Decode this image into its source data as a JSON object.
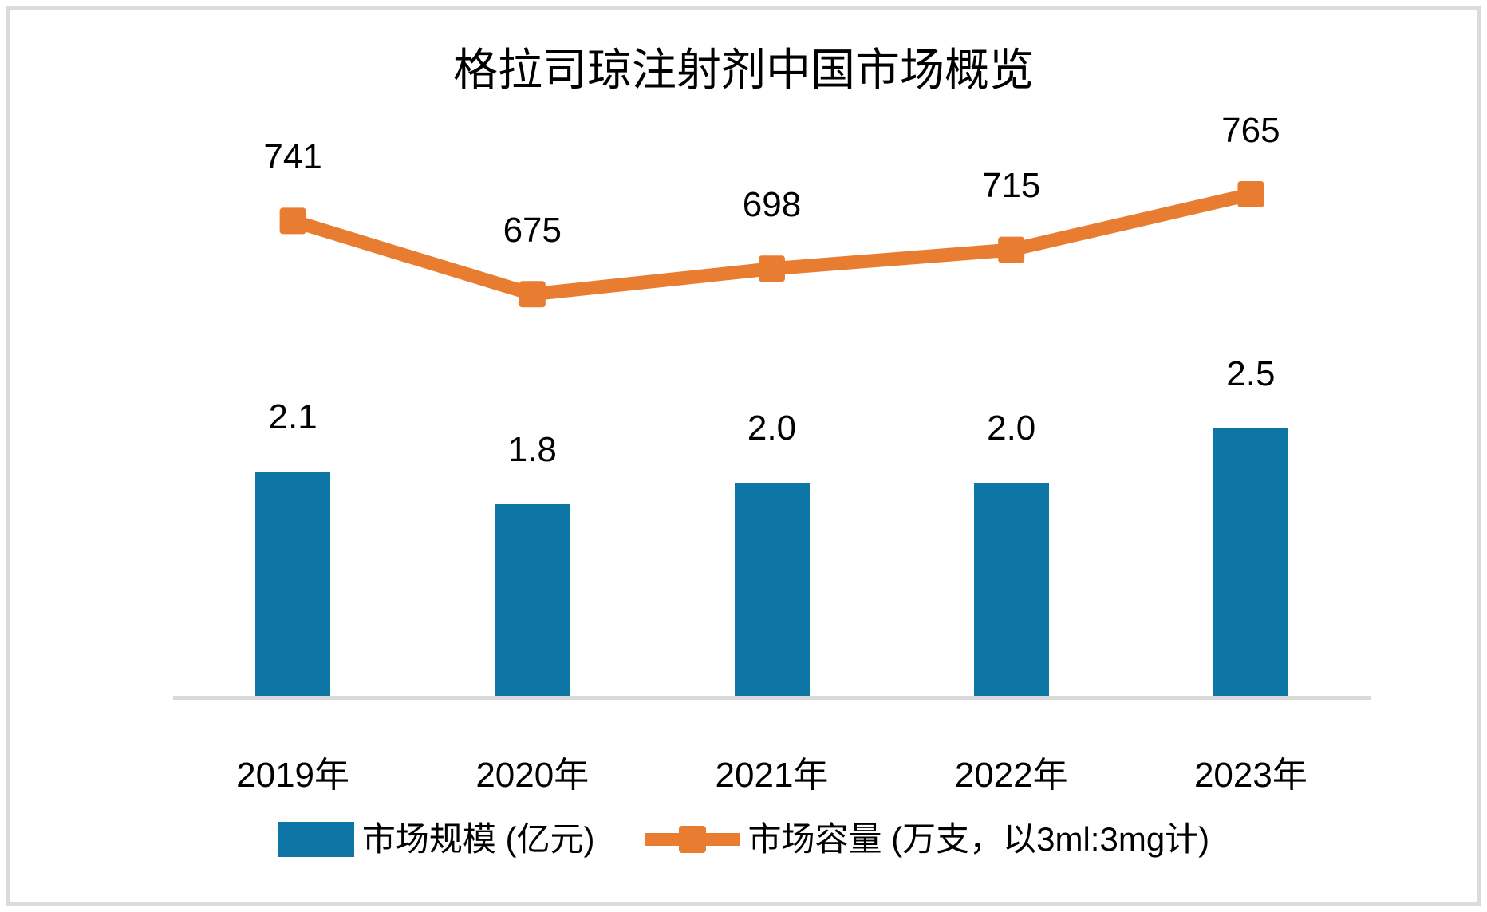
{
  "frame": {
    "border_color": "#DBDBDB",
    "background": "#FFFFFF"
  },
  "chart_data": {
    "type": "combo",
    "title": "格拉司琼注射剂中国市场概览",
    "categories": [
      "2019年",
      "2020年",
      "2021年",
      "2022年",
      "2023年"
    ],
    "series": [
      {
        "name": "市场规模 (亿元)",
        "type": "bar",
        "axis": "primary",
        "color": "#0D76A5",
        "values": [
          2.1,
          1.8,
          2.0,
          2.0,
          2.5
        ],
        "value_decimals": 1
      },
      {
        "name": "市场容量 (万支，以3ml:3mg计)",
        "type": "line",
        "axis": "secondary",
        "marker": "square",
        "color": "#E87D31",
        "values": [
          741,
          675,
          698,
          715,
          765
        ],
        "value_decimals": 0
      }
    ],
    "xlabel": "",
    "ylabel": "",
    "y1lim": [
      0,
      5.3
    ],
    "y2lim": [
      312,
      825
    ],
    "grid": false,
    "data_labels": true,
    "legend_position": "bottom",
    "axis_line_color": "#D9D9D9",
    "text_color": "#000000"
  }
}
